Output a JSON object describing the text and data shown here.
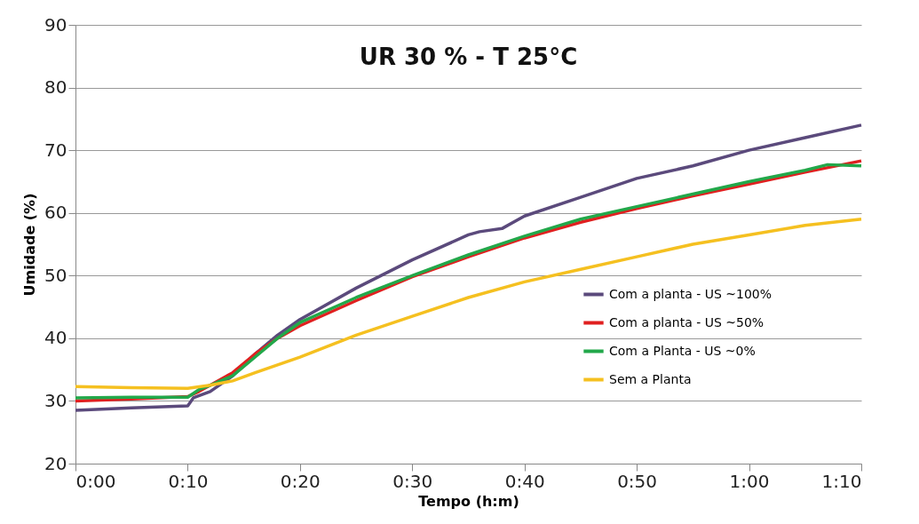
{
  "chart_data": {
    "type": "line",
    "title": "UR 30 % - T 25°C",
    "xlabel": "Tempo (h:m)",
    "ylabel": "Umidade (%)",
    "xlim": [
      0,
      1.1667
    ],
    "ylim": [
      20,
      90
    ],
    "xticks": [
      {
        "value": 0,
        "label": "0:00"
      },
      {
        "value": 0.1667,
        "label": "0:10"
      },
      {
        "value": 0.3333,
        "label": "0:20"
      },
      {
        "value": 0.5,
        "label": "0:30"
      },
      {
        "value": 0.6667,
        "label": "0:40"
      },
      {
        "value": 0.8333,
        "label": "0:50"
      },
      {
        "value": 1,
        "label": "1:00"
      },
      {
        "value": 1.1667,
        "label": "1:10"
      }
    ],
    "yticks": [
      20,
      30,
      40,
      50,
      60,
      70,
      80,
      90
    ],
    "grid": "y",
    "legend": "right",
    "marker": "none",
    "line_style": "solid",
    "series": [
      {
        "name": "Com a planta -  US ~100%",
        "color": "#5b4a7c",
        "x": [
          0,
          0.0833,
          0.1667,
          0.175,
          0.2,
          0.2333,
          0.2667,
          0.3,
          0.3333,
          0.4167,
          0.5,
          0.5833,
          0.6,
          0.6333,
          0.6667,
          0.75,
          0.8333,
          0.9167,
          1,
          1.0833,
          1.1667
        ],
        "values": [
          28.5,
          28.9,
          29.2,
          30.5,
          31.5,
          34,
          37.5,
          40.5,
          43,
          48,
          52.5,
          56.5,
          57,
          57.5,
          59.5,
          62.5,
          65.5,
          67.5,
          70,
          72,
          74
        ]
      },
      {
        "name": "Com a planta -  US ~50%",
        "color": "#e02020",
        "x": [
          0,
          0.0833,
          0.1667,
          0.1833,
          0.2,
          0.2333,
          0.2667,
          0.3,
          0.3333,
          0.4167,
          0.5,
          0.5833,
          0.6667,
          0.75,
          0.8333,
          0.9167,
          1,
          1.0833,
          1.1667
        ],
        "values": [
          30,
          30.3,
          30.7,
          31.5,
          32.5,
          34.5,
          37.5,
          40,
          42,
          46,
          49.8,
          53,
          56,
          58.5,
          60.7,
          62.7,
          64.6,
          66.5,
          68.3
        ]
      },
      {
        "name": "Com a Planta -  US ~0%",
        "color": "#22a84a",
        "x": [
          0,
          0.0833,
          0.1667,
          0.1833,
          0.2,
          0.2333,
          0.2667,
          0.3,
          0.3333,
          0.4167,
          0.5,
          0.5833,
          0.6667,
          0.75,
          0.8333,
          0.9167,
          1,
          1.0833,
          1.1167,
          1.1667
        ],
        "values": [
          30.5,
          30.6,
          30.6,
          31.8,
          32.5,
          34,
          37,
          40,
          42.5,
          46.5,
          50,
          53.3,
          56.3,
          59,
          61,
          63,
          65,
          66.8,
          67.7,
          67.5
        ]
      },
      {
        "name": "Sem a Planta",
        "color": "#f5c020",
        "x": [
          0,
          0.0833,
          0.1667,
          0.2,
          0.2333,
          0.2667,
          0.3333,
          0.4167,
          0.5,
          0.5833,
          0.6667,
          0.75,
          0.8333,
          0.9167,
          1,
          1.0833,
          1.1667
        ],
        "values": [
          32.3,
          32.1,
          32,
          32.5,
          33.2,
          34.5,
          37,
          40.5,
          43.5,
          46.5,
          49,
          51,
          53,
          55,
          56.5,
          58,
          59
        ]
      }
    ]
  }
}
